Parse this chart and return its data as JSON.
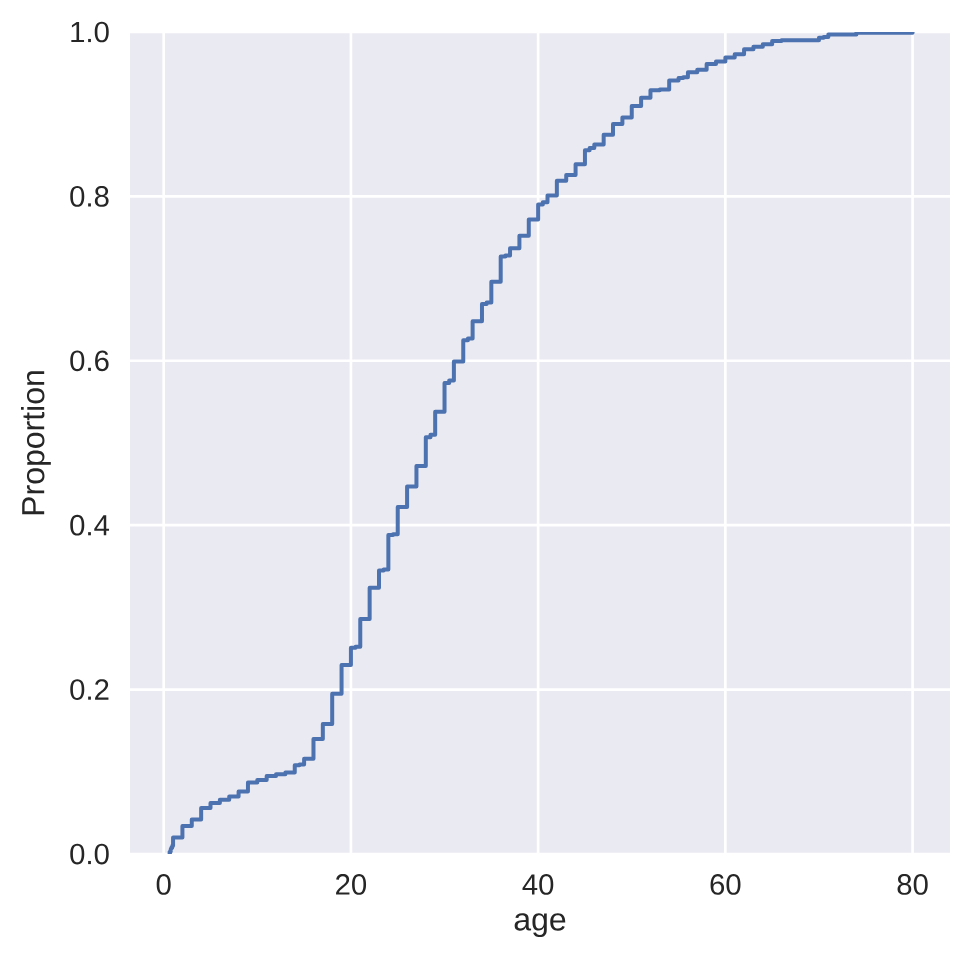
{
  "chart_data": {
    "type": "step",
    "xlabel": "age",
    "ylabel": "Proportion",
    "color": "#4c72b0",
    "grid": true,
    "x": [
      0.42,
      0.67,
      0.75,
      0.83,
      0.92,
      1,
      2,
      3,
      4,
      5,
      6,
      7,
      8,
      9,
      10,
      11,
      12,
      13,
      14,
      14.5,
      15,
      16,
      17,
      18,
      19,
      20,
      20.5,
      21,
      22,
      23,
      23.5,
      24,
      24.5,
      25,
      26,
      27,
      28,
      28.5,
      29,
      30,
      30.5,
      31,
      32,
      32.5,
      33,
      34,
      34.5,
      35,
      36,
      36.5,
      37,
      38,
      39,
      40,
      40.5,
      41,
      42,
      43,
      44,
      45,
      45.5,
      46,
      47,
      48,
      49,
      50,
      51,
      52,
      53,
      54,
      55,
      55.5,
      56,
      57,
      58,
      59,
      60,
      61,
      62,
      63,
      64,
      65,
      66,
      70,
      70.5,
      71,
      74,
      80
    ],
    "values": [
      0.001,
      0.003,
      0.006,
      0.008,
      0.01,
      0.02,
      0.034,
      0.042,
      0.056,
      0.062,
      0.066,
      0.07,
      0.076,
      0.087,
      0.09,
      0.095,
      0.097,
      0.099,
      0.108,
      0.109,
      0.116,
      0.14,
      0.158,
      0.195,
      0.23,
      0.251,
      0.252,
      0.286,
      0.324,
      0.345,
      0.346,
      0.388,
      0.389,
      0.422,
      0.447,
      0.472,
      0.507,
      0.51,
      0.538,
      0.573,
      0.576,
      0.599,
      0.625,
      0.627,
      0.648,
      0.669,
      0.671,
      0.696,
      0.727,
      0.728,
      0.737,
      0.752,
      0.772,
      0.79,
      0.793,
      0.801,
      0.819,
      0.826,
      0.839,
      0.856,
      0.859,
      0.863,
      0.875,
      0.888,
      0.896,
      0.91,
      0.92,
      0.929,
      0.93,
      0.941,
      0.944,
      0.945,
      0.951,
      0.954,
      0.961,
      0.964,
      0.969,
      0.973,
      0.979,
      0.982,
      0.985,
      0.989,
      0.99,
      0.993,
      0.994,
      0.997,
      0.999,
      1.0
    ],
    "xlim": [
      -3.6,
      84
    ],
    "ylim": [
      0,
      1
    ],
    "xticks": [
      0,
      20,
      40,
      60,
      80
    ],
    "yticks": [
      {
        "value": 0,
        "label": "0.0"
      },
      {
        "value": 0.2,
        "label": "0.2"
      },
      {
        "value": 0.4,
        "label": "0.4"
      },
      {
        "value": 0.6,
        "label": "0.6"
      },
      {
        "value": 0.8,
        "label": "0.8"
      },
      {
        "value": 1,
        "label": "1.0"
      }
    ]
  }
}
